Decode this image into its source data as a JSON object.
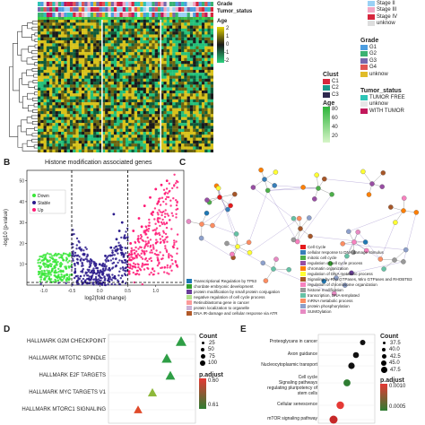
{
  "panel_a": {
    "annot_tracks": [
      "Grade",
      "Tumor_status"
    ],
    "annot_legend_top": [
      "Stage II",
      "Stage III",
      "Stage IV",
      "unknow"
    ],
    "age_label": "Age",
    "scale_ticks": [
      "2",
      "1",
      "0",
      "-1",
      "-2"
    ],
    "legends": [
      {
        "title": "Grade",
        "items": [
          {
            "label": "G1",
            "color": "#4d9de0"
          },
          {
            "label": "G2",
            "color": "#3bb273"
          },
          {
            "label": "G3",
            "color": "#7768ae"
          },
          {
            "label": "G4",
            "color": "#e15554"
          },
          {
            "label": "unknow",
            "color": "#e1bc29"
          }
        ]
      },
      {
        "title": "Clust",
        "items": [
          {
            "label": "C1",
            "color": "#d7263d"
          },
          {
            "label": "C2",
            "color": "#1b998b"
          },
          {
            "label": "C3",
            "color": "#2e294e"
          }
        ]
      },
      {
        "title": "Tumor_status",
        "items": [
          {
            "label": "TUMOR FREE",
            "color": "#2ec4b6"
          },
          {
            "label": "unknow",
            "color": "#e6e6e6"
          },
          {
            "label": "WITH TUMOR",
            "color": "#c2185b"
          }
        ]
      }
    ],
    "age_legend": {
      "title": "Age",
      "ticks": [
        "80",
        "60",
        "40",
        "20"
      ]
    }
  },
  "panel_b": {
    "letter": "B",
    "title": "Histone modification associated genes",
    "legend": [
      {
        "label": "Down",
        "color": "#39e639"
      },
      {
        "label": "Stable",
        "color": "#2b1b8c"
      },
      {
        "label": "Up",
        "color": "#ff1a75"
      }
    ],
    "xlabel": "log2(fold change)",
    "ylabel": "-log10 (p-value)",
    "xticks": [
      "-1.0",
      "-0.5",
      "0.0",
      "0.5",
      "1.0"
    ],
    "yticks": [
      "10",
      "20",
      "30",
      "40",
      "50"
    ]
  },
  "panel_c": {
    "letter": "C",
    "legend": [
      {
        "label": "Cell Cycle",
        "color": "#e41a1c"
      },
      {
        "label": "cellular response to DNA damage stimulus",
        "color": "#377eb8"
      },
      {
        "label": "mitotic cell cycle",
        "color": "#4daf4a"
      },
      {
        "label": "regulation of cell cycle process",
        "color": "#984ea3"
      },
      {
        "label": "chromatin organization",
        "color": "#ff7f00"
      },
      {
        "label": "regulation of DNA metabolic process",
        "color": "#ffff33"
      },
      {
        "label": "Signaling by Rho GTPases, Miro GTPases and RHOBTB3",
        "color": "#a65628"
      },
      {
        "label": "regulation of chromosome organization",
        "color": "#f781bf"
      },
      {
        "label": "histone modification",
        "color": "#999999"
      },
      {
        "label": "transcription, DNA-templated",
        "color": "#66c2a5"
      },
      {
        "label": "mRNA metabolic process",
        "color": "#fc8d62"
      },
      {
        "label": "protein phosphorylation",
        "color": "#8da0cb"
      },
      {
        "label": "SUMOylation",
        "color": "#e78ac3"
      }
    ],
    "legend_left": [
      {
        "label": "Transcriptional Regulation by TP53",
        "color": "#1f78b4"
      },
      {
        "label": "chordate embryonic development",
        "color": "#33a02c"
      },
      {
        "label": "protein modification by small protein conjugation",
        "color": "#6a3d9a"
      },
      {
        "label": "negative regulation of cell cycle process",
        "color": "#b2df8a"
      },
      {
        "label": "Retinoblastoma gene in cancer",
        "color": "#fb9a99"
      },
      {
        "label": "protein localization to organelle",
        "color": "#cab2d6"
      },
      {
        "label": "DNA IR-damage and cellular response via ATR",
        "color": "#b15928"
      }
    ]
  },
  "panel_d": {
    "letter": "D",
    "terms": [
      "HALLMARK G2M CHECKPOINT",
      "HALLMARK MITOTIC SPINDLE",
      "HALLMARK E2F TARGETS",
      "HALLMARK MYC TARGETS V1",
      "HALLMARK MTORC1 SIGNALING"
    ],
    "count_title": "Count",
    "count_ticks": [
      "25",
      "50",
      "75",
      "100"
    ],
    "padj_title": "p.adjust",
    "padj_ticks": [
      "0.60",
      "0.61"
    ]
  },
  "panel_e": {
    "letter": "E",
    "terms": [
      "Proteoglycans in cancer",
      "Axon guidance",
      "Nucleocytoplasmic transport",
      "Cell cycle",
      "Signaling pathways",
      "regulating pluripotency of",
      "stem cells",
      "Cellular senescence",
      "mTOR signaling pathway"
    ],
    "count_title": "Count",
    "count_ticks": [
      "37.5",
      "40.0",
      "42.5",
      "45.0",
      "47.5"
    ],
    "padj_title": "p.adjust",
    "padj_ticks": [
      "0.0010",
      "0.0005"
    ]
  },
  "chart_data": [
    {
      "type": "scatter",
      "title": "Histone modification associated genes",
      "xlabel": "log2(fold change)",
      "ylabel": "-log10 (p-value)",
      "xlim": [
        -1.3,
        1.5
      ],
      "ylim": [
        0,
        55
      ],
      "series": [
        {
          "name": "Down",
          "color": "#39e639",
          "points": [
            [
              -0.9,
              3
            ],
            [
              -0.8,
              6
            ],
            [
              -0.7,
              9
            ],
            [
              -0.65,
              12
            ],
            [
              -0.6,
              8
            ],
            [
              -0.55,
              14
            ],
            [
              -0.75,
              4
            ],
            [
              -0.5,
              5
            ],
            [
              -0.85,
              7
            ]
          ]
        },
        {
          "name": "Stable",
          "color": "#2b1b8c",
          "points": [
            [
              -0.3,
              1
            ],
            [
              -0.2,
              3
            ],
            [
              -0.1,
              6
            ],
            [
              0.0,
              10
            ],
            [
              0.1,
              14
            ],
            [
              0.2,
              18
            ],
            [
              0.3,
              22
            ],
            [
              0.35,
              26
            ],
            [
              0.4,
              30
            ],
            [
              -0.4,
              2
            ],
            [
              0.25,
              34
            ]
          ]
        },
        {
          "name": "Up",
          "color": "#ff1a75",
          "points": [
            [
              0.55,
              20
            ],
            [
              0.6,
              26
            ],
            [
              0.7,
              32
            ],
            [
              0.8,
              38
            ],
            [
              0.9,
              42
            ],
            [
              1.0,
              46
            ],
            [
              1.1,
              48
            ],
            [
              1.2,
              50
            ],
            [
              0.65,
              14
            ],
            [
              0.75,
              28
            ],
            [
              0.95,
              35
            ],
            [
              1.05,
              40
            ]
          ]
        }
      ]
    },
    {
      "type": "scatter",
      "title": "",
      "categories": [
        "HALLMARK G2M CHECKPOINT",
        "HALLMARK MITOTIC SPINDLE",
        "HALLMARK E2F TARGETS",
        "HALLMARK MYC TARGETS V1",
        "HALLMARK MTORC1 SIGNALING"
      ],
      "series": [
        {
          "name": "",
          "values": [
            0.9,
            0.7,
            0.75,
            0.5,
            0.3
          ]
        }
      ]
    },
    {
      "type": "scatter",
      "title": "",
      "categories": [
        "Proteoglycans in cancer",
        "Axon guidance",
        "Nucleocytoplasmic transport",
        "Cell cycle",
        "Cellular senescence",
        "mTOR signaling pathway"
      ],
      "series": [
        {
          "name": "",
          "values": [
            0.85,
            0.7,
            0.6,
            0.5,
            0.35,
            0.2
          ]
        }
      ]
    }
  ]
}
